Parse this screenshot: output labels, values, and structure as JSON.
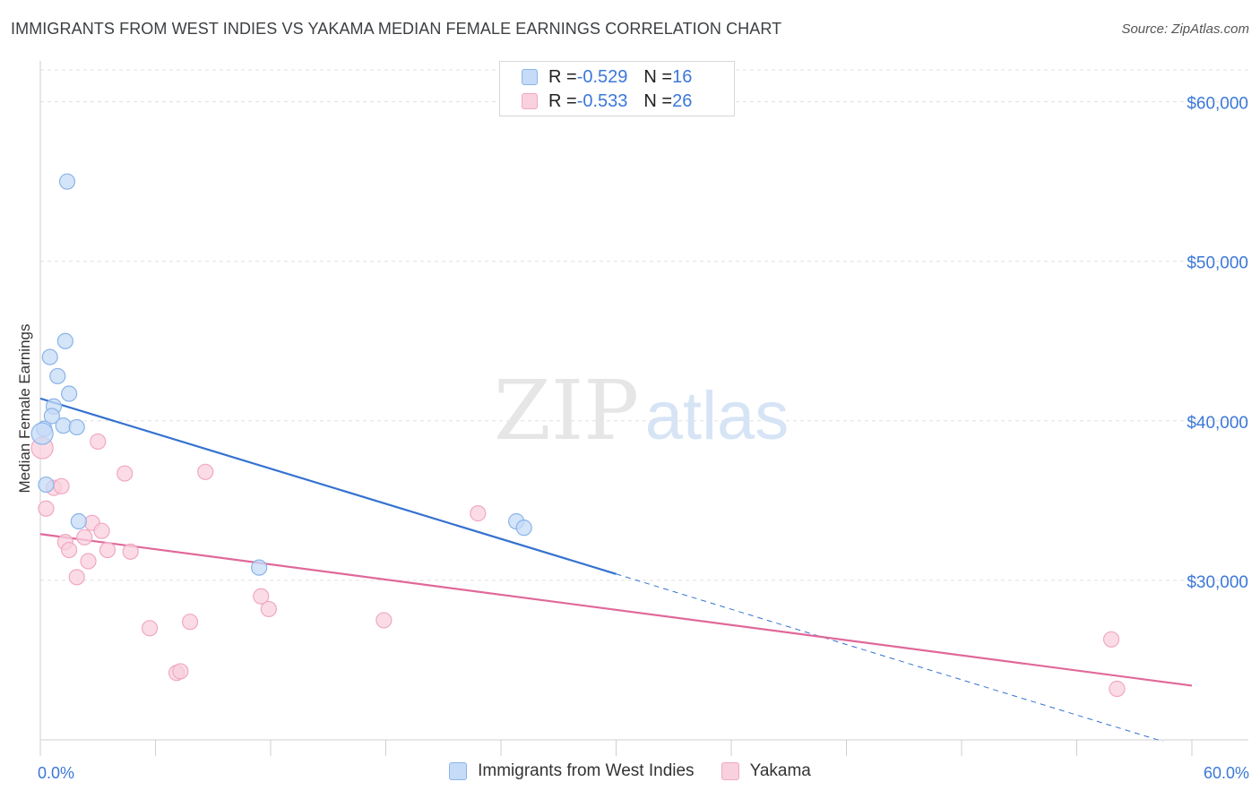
{
  "title": "IMMIGRANTS FROM WEST INDIES VS YAKAMA MEDIAN FEMALE EARNINGS CORRELATION CHART",
  "source": "Source: ZipAtlas.com",
  "watermark": {
    "zip": "ZIP",
    "atlas": "atlas"
  },
  "legend": {
    "rows": [
      {
        "r_label": "R = ",
        "r_value": "-0.529",
        "n_label": "N = ",
        "n_value": "16"
      },
      {
        "r_label": "R = ",
        "r_value": "-0.533",
        "n_label": "N = ",
        "n_value": "26"
      }
    ]
  },
  "chart_data": {
    "type": "scatter",
    "title": "IMMIGRANTS FROM WEST INDIES VS YAKAMA MEDIAN FEMALE EARNINGS CORRELATION CHART",
    "xlabel": "",
    "ylabel": "Median Female Earnings",
    "xlim": [
      0,
      60
    ],
    "ylim": [
      20000,
      62000
    ],
    "x_tick_labels": [
      "0.0%",
      "60.0%"
    ],
    "y_ticks": [
      30000,
      40000,
      50000,
      60000
    ],
    "y_tick_labels": [
      "$30,000",
      "$40,000",
      "$50,000",
      "$60,000"
    ],
    "grid": true,
    "legend_position": "top-center",
    "series": [
      {
        "name": "Immigrants from West Indies",
        "color": "#8ab4e8",
        "fill": "#c6dbf7",
        "line_color": "#3572d0",
        "points": [
          [
            1.4,
            55000
          ],
          [
            1.3,
            45000
          ],
          [
            0.5,
            44000
          ],
          [
            0.9,
            42800
          ],
          [
            1.5,
            41700
          ],
          [
            0.7,
            40900
          ],
          [
            0.6,
            40300
          ],
          [
            1.2,
            39700
          ],
          [
            1.9,
            39600
          ],
          [
            0.2,
            39500
          ],
          [
            0.1,
            39200
          ],
          [
            0.3,
            36000
          ],
          [
            2.0,
            33700
          ],
          [
            11.4,
            30800
          ],
          [
            24.8,
            33700
          ],
          [
            25.2,
            33300
          ]
        ],
        "trend": {
          "x0": 0,
          "y0": 41400,
          "x1": 30,
          "y1": 30400,
          "dash_to_x": 58.5,
          "dash_to_y": 19900
        }
      },
      {
        "name": "Yakama",
        "color": "#f0a8c0",
        "fill": "#f9d0de",
        "line_color": "#e0689a",
        "points": [
          [
            0.1,
            38300
          ],
          [
            0.3,
            34500
          ],
          [
            0.7,
            35800
          ],
          [
            1.1,
            35900
          ],
          [
            1.3,
            32400
          ],
          [
            1.5,
            31900
          ],
          [
            1.9,
            30200
          ],
          [
            2.3,
            32700
          ],
          [
            2.5,
            31200
          ],
          [
            2.7,
            33600
          ],
          [
            3.0,
            38700
          ],
          [
            3.2,
            33100
          ],
          [
            3.5,
            31900
          ],
          [
            4.4,
            36700
          ],
          [
            4.7,
            31800
          ],
          [
            5.7,
            27000
          ],
          [
            7.1,
            24200
          ],
          [
            7.3,
            24300
          ],
          [
            7.8,
            27400
          ],
          [
            8.6,
            36800
          ],
          [
            11.5,
            29000
          ],
          [
            11.9,
            28200
          ],
          [
            17.9,
            27500
          ],
          [
            22.8,
            34200
          ],
          [
            55.8,
            26300
          ],
          [
            56.1,
            23200
          ]
        ],
        "trend": {
          "x0": 0,
          "y0": 32900,
          "x1": 60,
          "y1": 23400
        }
      }
    ]
  }
}
